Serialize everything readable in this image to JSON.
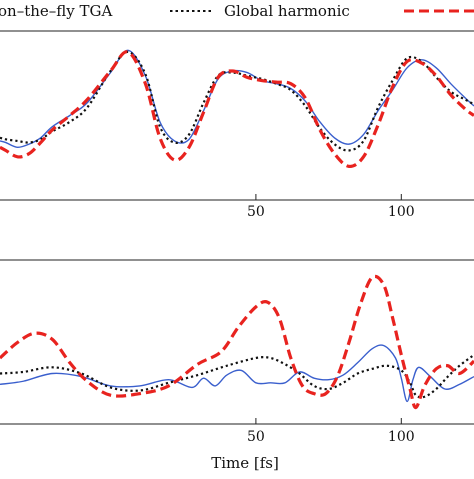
{
  "chart_data": [
    {
      "type": "line",
      "xlabel": "",
      "ylabel": "",
      "xlim": [
        -38,
        125
      ],
      "ylim": [
        0,
        1
      ],
      "xticks": [
        50,
        100
      ],
      "xtick_labels": [
        "50",
        "100"
      ],
      "legend_position": "top",
      "legend": [
        {
          "label": "on–the–fly TGA",
          "color": "#3a5fcd",
          "style": "solid"
        },
        {
          "label": "Global harmonic",
          "color": "#111111",
          "style": "dotted"
        },
        {
          "label": "",
          "color": "#e8231f",
          "style": "dashed"
        }
      ],
      "series": [
        {
          "key": "tga",
          "color": "#3a5fcd",
          "style": "solid",
          "x": [
            -38,
            -36,
            -32,
            -28,
            -24,
            -20,
            -14,
            -8,
            0,
            6,
            12,
            17,
            22,
            27,
            32,
            37,
            42,
            47,
            52,
            57,
            62,
            67,
            72,
            77,
            82,
            87,
            92,
            97,
            102,
            107,
            112,
            117,
            122,
            125
          ],
          "y": [
            0.34,
            0.33,
            0.3,
            0.32,
            0.36,
            0.43,
            0.5,
            0.58,
            0.77,
            0.91,
            0.75,
            0.46,
            0.34,
            0.35,
            0.53,
            0.73,
            0.78,
            0.77,
            0.72,
            0.7,
            0.67,
            0.59,
            0.46,
            0.36,
            0.32,
            0.38,
            0.53,
            0.66,
            0.8,
            0.85,
            0.8,
            0.7,
            0.61,
            0.56
          ]
        },
        {
          "key": "harmonic",
          "color": "#111111",
          "style": "dotted",
          "x": [
            -38,
            -36,
            -32,
            -28,
            -24,
            -20,
            -14,
            -8,
            0,
            6,
            12,
            17,
            22,
            27,
            32,
            37,
            42,
            47,
            52,
            57,
            62,
            67,
            72,
            77,
            82,
            87,
            92,
            97,
            102,
            107,
            112,
            117,
            122,
            125
          ],
          "y": [
            0.36,
            0.35,
            0.34,
            0.33,
            0.35,
            0.4,
            0.46,
            0.55,
            0.78,
            0.9,
            0.76,
            0.43,
            0.33,
            0.38,
            0.58,
            0.75,
            0.77,
            0.75,
            0.73,
            0.7,
            0.66,
            0.56,
            0.42,
            0.32,
            0.28,
            0.34,
            0.55,
            0.72,
            0.86,
            0.84,
            0.74,
            0.65,
            0.6,
            0.57
          ]
        },
        {
          "key": "exact",
          "color": "#e8231f",
          "style": "dashed",
          "x": [
            -38,
            -36,
            -32,
            -28,
            -24,
            -20,
            -14,
            -8,
            0,
            6,
            12,
            17,
            22,
            27,
            32,
            37,
            42,
            47,
            52,
            57,
            62,
            67,
            72,
            77,
            82,
            87,
            92,
            97,
            102,
            107,
            112,
            117,
            122,
            125
          ],
          "y": [
            0.3,
            0.28,
            0.24,
            0.26,
            0.33,
            0.41,
            0.5,
            0.6,
            0.78,
            0.9,
            0.7,
            0.36,
            0.22,
            0.3,
            0.52,
            0.74,
            0.78,
            0.74,
            0.72,
            0.71,
            0.7,
            0.61,
            0.41,
            0.26,
            0.18,
            0.24,
            0.44,
            0.68,
            0.84,
            0.83,
            0.75,
            0.63,
            0.54,
            0.5
          ]
        }
      ]
    },
    {
      "type": "line",
      "xlabel": "Time [fs]",
      "ylabel": "",
      "xlim": [
        -38,
        125
      ],
      "ylim": [
        0,
        1
      ],
      "xticks": [
        50,
        100
      ],
      "xtick_labels": [
        "50",
        "100"
      ],
      "series": [
        {
          "key": "tga",
          "color": "#3a5fcd",
          "style": "solid",
          "x": [
            -38,
            -30,
            -20,
            -10,
            0,
            10,
            20,
            28,
            32,
            36,
            40,
            45,
            50,
            55,
            60,
            65,
            70,
            75,
            80,
            85,
            90,
            94,
            98,
            100,
            102,
            104,
            106,
            110,
            115,
            120,
            125
          ],
          "y": [
            0.23,
            0.25,
            0.3,
            0.28,
            0.22,
            0.22,
            0.26,
            0.21,
            0.27,
            0.22,
            0.29,
            0.32,
            0.24,
            0.24,
            0.24,
            0.31,
            0.27,
            0.26,
            0.29,
            0.37,
            0.46,
            0.48,
            0.4,
            0.27,
            0.12,
            0.26,
            0.34,
            0.28,
            0.2,
            0.23,
            0.28
          ]
        },
        {
          "key": "harmonic",
          "color": "#111111",
          "style": "dotted",
          "x": [
            -38,
            -30,
            -20,
            -10,
            0,
            10,
            20,
            30,
            40,
            50,
            55,
            60,
            65,
            70,
            75,
            80,
            85,
            90,
            95,
            100,
            103,
            105,
            108,
            112,
            116,
            120,
            125
          ],
          "y": [
            0.3,
            0.31,
            0.34,
            0.3,
            0.21,
            0.19,
            0.24,
            0.29,
            0.35,
            0.4,
            0.4,
            0.36,
            0.3,
            0.22,
            0.2,
            0.24,
            0.3,
            0.33,
            0.35,
            0.32,
            0.24,
            0.16,
            0.15,
            0.2,
            0.28,
            0.35,
            0.42
          ]
        },
        {
          "key": "exact",
          "color": "#e8231f",
          "style": "dashed",
          "x": [
            -38,
            -32,
            -26,
            -20,
            -14,
            -8,
            0,
            10,
            20,
            30,
            38,
            44,
            50,
            54,
            58,
            62,
            66,
            70,
            74,
            78,
            82,
            86,
            90,
            94,
            97,
            100,
            103,
            105,
            108,
            112,
            116,
            120,
            125
          ],
          "y": [
            0.4,
            0.5,
            0.56,
            0.52,
            0.37,
            0.25,
            0.16,
            0.17,
            0.22,
            0.36,
            0.44,
            0.6,
            0.73,
            0.76,
            0.66,
            0.4,
            0.22,
            0.17,
            0.17,
            0.28,
            0.5,
            0.75,
            0.92,
            0.87,
            0.66,
            0.42,
            0.2,
            0.08,
            0.22,
            0.33,
            0.35,
            0.3,
            0.38
          ]
        }
      ]
    }
  ]
}
